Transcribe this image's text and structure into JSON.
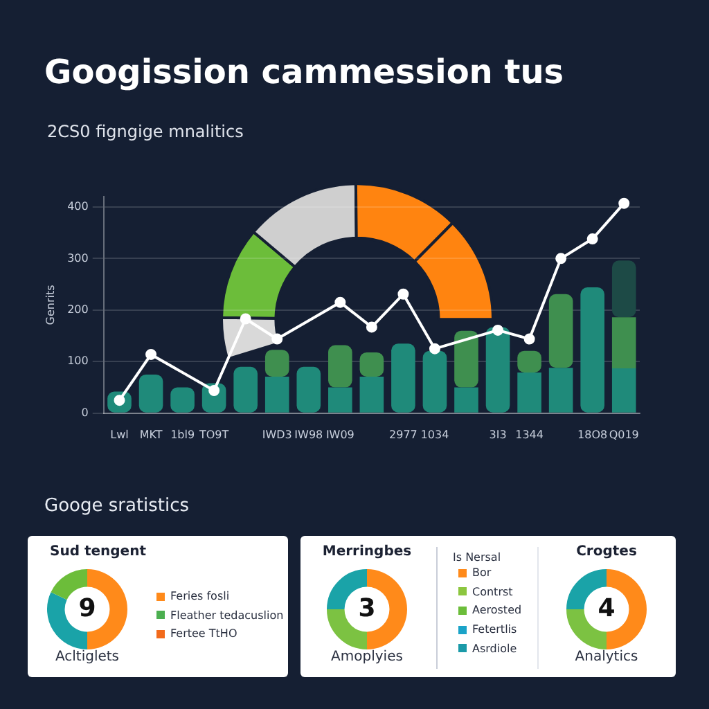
{
  "chart_data": [
    {
      "type": "bar",
      "title": "Googission cammession tus",
      "subtitle": "2CS0 figngige mnalitics",
      "ylabel": "Genrits",
      "categories": [
        "Lwl",
        "MKT",
        "1bl9",
        "TO9T",
        null,
        "IWD3",
        "IW98",
        "IW09",
        null,
        "2977",
        "1034",
        null,
        "3I3",
        "1344",
        null,
        "18O8",
        "Q019"
      ],
      "stacked": true,
      "series": [
        {
          "color": "#1f8a7a",
          "values": [
            42,
            75,
            50,
            58,
            90,
            71,
            90,
            50,
            71,
            135,
            121,
            50,
            167,
            79,
            88,
            244,
            87
          ]
        },
        {
          "color": "#3f8f4f",
          "values": [
            null,
            null,
            null,
            null,
            null,
            52,
            null,
            82,
            47,
            null,
            null,
            110,
            null,
            42,
            143,
            null,
            99
          ]
        },
        {
          "color": "#1d4a46",
          "values": [
            null,
            null,
            null,
            null,
            null,
            null,
            null,
            null,
            null,
            null,
            null,
            null,
            null,
            null,
            null,
            null,
            110
          ]
        },
        {
          "type": "line",
          "color": "#ffffff",
          "values": [
            25,
            114,
            null,
            44,
            183,
            144,
            null,
            215,
            167,
            231,
            125,
            null,
            161,
            144,
            300,
            338,
            407
          ]
        }
      ],
      "ylim": [
        0,
        420
      ],
      "yticks": [
        0,
        100,
        200,
        300,
        400
      ],
      "grid": "y",
      "marker": "circle",
      "legend": false,
      "annotations": [
        "Googe sratistics"
      ]
    },
    {
      "type": "donut",
      "categories": [
        null,
        null,
        null,
        null,
        null
      ],
      "values": [
        9,
        20,
        25,
        23,
        23
      ],
      "colors": [
        "#d9d9d9",
        "#6cbd3a",
        "#cfcfcf",
        "#ff8410",
        "#ff8410"
      ]
    },
    {
      "type": "donut",
      "title": "Sud tengent",
      "categories": [
        null,
        null,
        null
      ],
      "values": [
        50,
        32,
        18
      ],
      "colors": [
        "#ff8a1a",
        "#1aa3a8",
        "#6cbd3a"
      ],
      "annotations": [
        "9",
        "Acltiglets",
        "Feries fosli",
        "Fleather tedacuslion",
        "Fertee TtHO"
      ]
    },
    {
      "type": "donut",
      "title": "Merringbes",
      "legend_title": "Is Nersal",
      "categories": [
        null,
        null,
        null
      ],
      "values": [
        50,
        25,
        25
      ],
      "colors": [
        "#ff8a1a",
        "#7cc242",
        "#1aa3a8"
      ],
      "annotations": [
        "3",
        "Amoplyies",
        "Bor",
        "Contrst",
        "Aerosted",
        "Fetertlis",
        "Asrdiole"
      ]
    },
    {
      "type": "donut",
      "title": "Crogtes",
      "categories": [
        null,
        null,
        null
      ],
      "values": [
        50,
        25,
        25
      ],
      "colors": [
        "#ff8a1a",
        "#7cc242",
        "#1aa3a8"
      ],
      "annotations": [
        "4",
        "Analytics"
      ]
    }
  ]
}
